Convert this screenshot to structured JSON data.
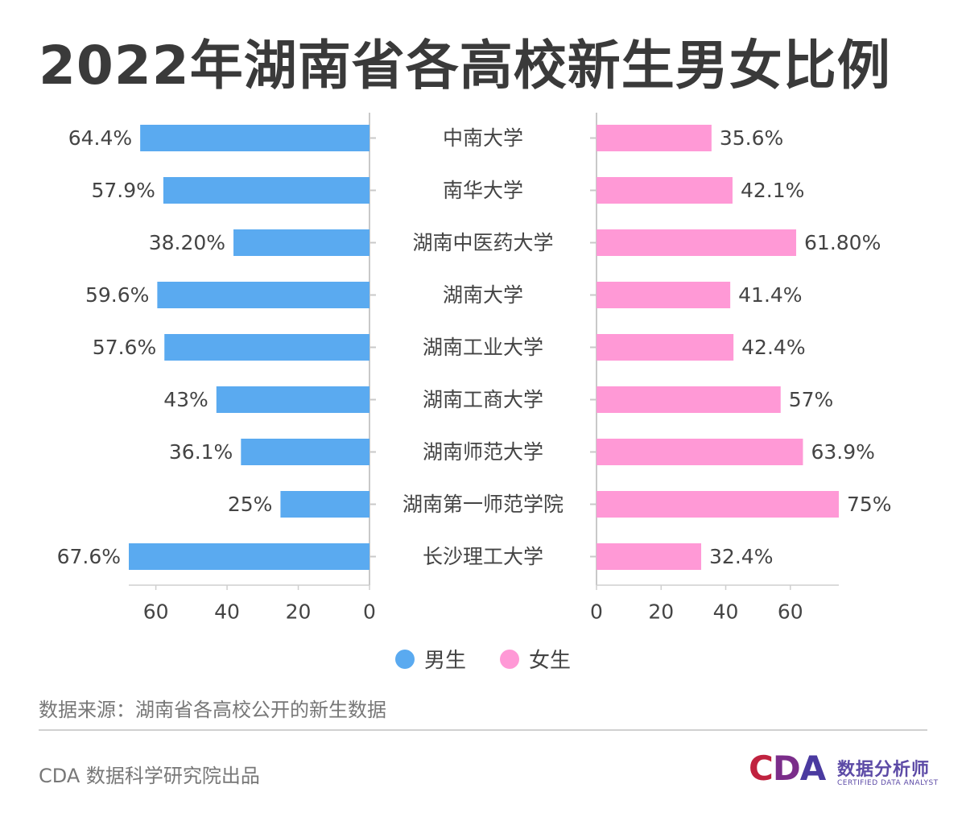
{
  "title": "2022年湖南省各高校新生男女比例",
  "chart_data": {
    "type": "bar",
    "layout": "butterfly",
    "categories": [
      "中南大学",
      "南华大学",
      "湖南中医药大学",
      "湖南大学",
      "湖南工业大学",
      "湖南工商大学",
      "湖南师范大学",
      "湖南第一师范学院",
      "长沙理工大学"
    ],
    "series": [
      {
        "name": "男生",
        "color": "#5aaaf0",
        "values": [
          64.4,
          57.9,
          38.2,
          59.6,
          57.6,
          43,
          36.1,
          25,
          67.6
        ],
        "labels": [
          "64.4%",
          "57.9%",
          "38.20%",
          "59.6%",
          "57.6%",
          "43%",
          "36.1%",
          "25%",
          "67.6%"
        ],
        "ticks": [
          "60",
          "40",
          "20",
          "0"
        ],
        "xlim": [
          0,
          67.6
        ]
      },
      {
        "name": "女生",
        "color": "#ff99d6",
        "values": [
          35.6,
          42.1,
          61.8,
          41.4,
          42.4,
          57,
          63.9,
          75,
          32.4
        ],
        "labels": [
          "35.6%",
          "42.1%",
          "61.80%",
          "41.4%",
          "42.4%",
          "57%",
          "63.9%",
          "75%",
          "32.4%"
        ],
        "ticks": [
          "0",
          "20",
          "40",
          "60"
        ],
        "xlim": [
          0,
          75
        ]
      }
    ]
  },
  "source": "数据来源：湖南省各高校公开的新生数据",
  "credit": "CDA 数据科学研究院出品",
  "logo": {
    "c": "C",
    "d": "D",
    "a": "A",
    "cn": "数据分析师",
    "en": "CERTIFIED DATA ANALYST"
  }
}
